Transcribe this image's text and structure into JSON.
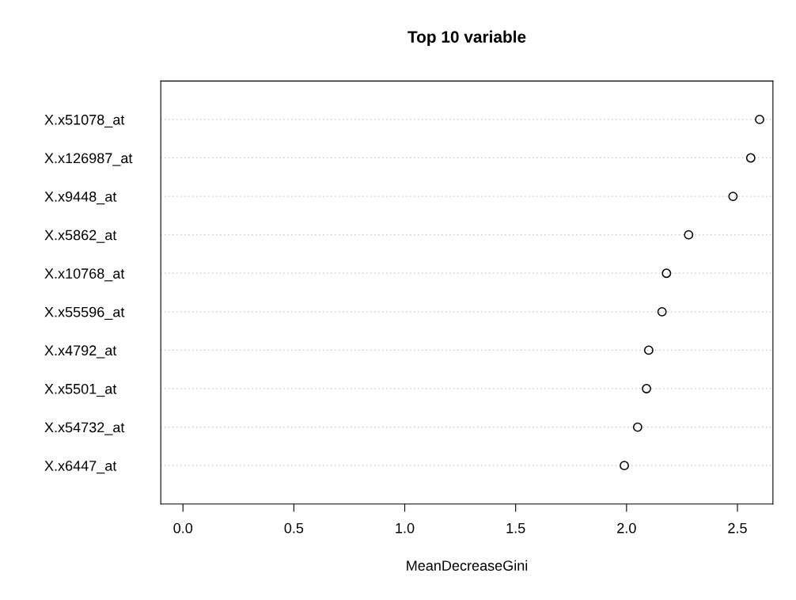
{
  "chart_data": {
    "type": "scatter",
    "title": "Top 10 variable",
    "xlabel": "MeanDecreaseGini",
    "orientation": "horizontal",
    "categories": [
      "X.x51078_at",
      "X.x126987_at",
      "X.x9448_at",
      "X.x5862_at",
      "X.x10768_at",
      "X.x55596_at",
      "X.x4792_at",
      "X.x5501_at",
      "X.x54732_at",
      "X.x6447_at"
    ],
    "values": [
      2.6,
      2.56,
      2.48,
      2.28,
      2.18,
      2.16,
      2.1,
      2.09,
      2.05,
      1.99
    ],
    "color": "#000000",
    "marker": "circle",
    "grid": "y",
    "xlim": [
      -0.1,
      2.66
    ],
    "xticks": [
      {
        "value": 0,
        "label": "0.0"
      },
      {
        "value": 0.5,
        "label": "0.5"
      },
      {
        "value": 1,
        "label": "1.0"
      },
      {
        "value": 1.5,
        "label": "1.5"
      },
      {
        "value": 2,
        "label": "2.0"
      },
      {
        "value": 2.5,
        "label": "2.5"
      }
    ]
  }
}
